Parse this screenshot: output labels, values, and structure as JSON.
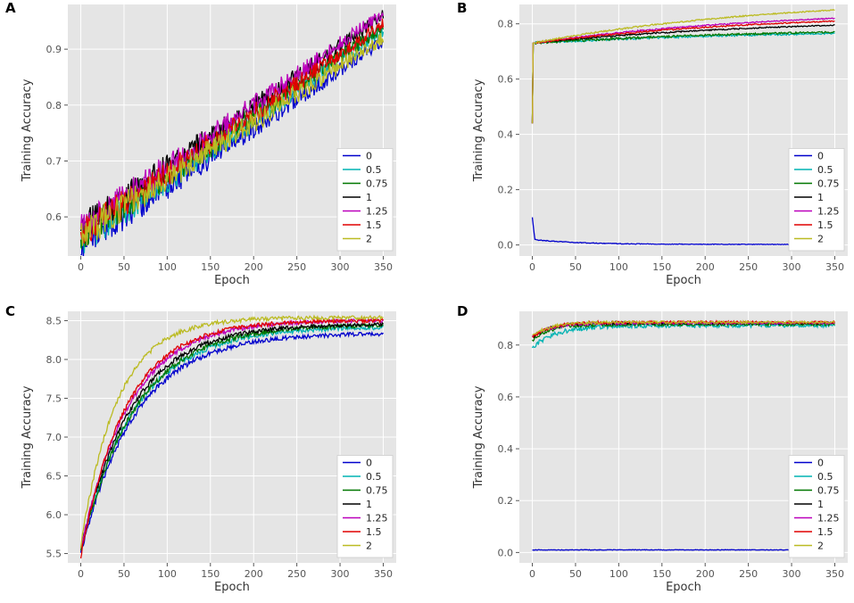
{
  "chart_data": [
    {
      "panel": "A",
      "type": "line",
      "xlabel": "Epoch",
      "ylabel": "Training Accuracy",
      "xlim": [
        -15,
        365
      ],
      "ylim": [
        0.53,
        0.98
      ],
      "xticks": [
        "0",
        "50",
        "100",
        "150",
        "200",
        "250",
        "300",
        "350"
      ],
      "yticks": [
        "0.6",
        "0.7",
        "0.8",
        "0.9"
      ],
      "legend_position": "bottom-right",
      "series": [
        {
          "name": "0",
          "color": "#0000cc",
          "start": 0.55,
          "end": 0.915,
          "shape": 1.0,
          "noise": 0.018,
          "seed": 11
        },
        {
          "name": "0.5",
          "color": "#00b3b3",
          "start": 0.56,
          "end": 0.935,
          "shape": 1.0,
          "noise": 0.02,
          "seed": 12
        },
        {
          "name": "0.75",
          "color": "#007700",
          "start": 0.57,
          "end": 0.94,
          "shape": 1.0,
          "noise": 0.02,
          "seed": 13
        },
        {
          "name": "1",
          "color": "#000000",
          "start": 0.58,
          "end": 0.96,
          "shape": 1.0,
          "noise": 0.018,
          "seed": 14
        },
        {
          "name": "1.25",
          "color": "#bb00bb",
          "start": 0.58,
          "end": 0.965,
          "shape": 1.0,
          "noise": 0.018,
          "seed": 15
        },
        {
          "name": "1.5",
          "color": "#e00000",
          "start": 0.57,
          "end": 0.945,
          "shape": 1.0,
          "noise": 0.018,
          "seed": 16
        },
        {
          "name": "2",
          "color": "#bbbb22",
          "start": 0.57,
          "end": 0.92,
          "shape": 1.0,
          "noise": 0.02,
          "seed": 17
        }
      ]
    },
    {
      "panel": "B",
      "type": "line",
      "xlabel": "Epoch",
      "ylabel": "Training Accuracy",
      "xlim": [
        -15,
        365
      ],
      "ylim": [
        -0.04,
        0.87
      ],
      "xticks": [
        "0",
        "50",
        "100",
        "150",
        "200",
        "250",
        "300",
        "350"
      ],
      "yticks": [
        "0.0",
        "0.2",
        "0.4",
        "0.6",
        "0.8"
      ],
      "legend_position": "bottom-right",
      "series": [
        {
          "name": "0",
          "color": "#0000cc",
          "spike": 0.1,
          "start": 0.02,
          "end": 0.002,
          "shape": 0.15,
          "noise": 0.001,
          "seed": 21
        },
        {
          "name": "0.5",
          "color": "#00b3b3",
          "spike": 0.44,
          "start": 0.73,
          "end": 0.765,
          "shape": 0.8,
          "noise": 0.003,
          "seed": 22
        },
        {
          "name": "0.75",
          "color": "#007700",
          "spike": 0.44,
          "start": 0.73,
          "end": 0.77,
          "shape": 0.8,
          "noise": 0.003,
          "seed": 23
        },
        {
          "name": "1",
          "color": "#000000",
          "spike": 0.44,
          "start": 0.73,
          "end": 0.795,
          "shape": 0.8,
          "noise": 0.002,
          "seed": 24
        },
        {
          "name": "1.25",
          "color": "#bb00bb",
          "spike": 0.44,
          "start": 0.73,
          "end": 0.82,
          "shape": 0.8,
          "noise": 0.002,
          "seed": 25
        },
        {
          "name": "1.5",
          "color": "#e00000",
          "spike": 0.44,
          "start": 0.73,
          "end": 0.81,
          "shape": 0.8,
          "noise": 0.002,
          "seed": 26
        },
        {
          "name": "2",
          "color": "#bbbb22",
          "spike": 0.44,
          "start": 0.73,
          "end": 0.85,
          "shape": 0.8,
          "noise": 0.002,
          "seed": 27
        }
      ]
    },
    {
      "panel": "C",
      "type": "line",
      "xlabel": "Epoch",
      "ylabel": "Training Accuracy",
      "xlim": [
        -15,
        365
      ],
      "ylim": [
        5.38,
        8.62
      ],
      "xticks": [
        "0",
        "50",
        "100",
        "150",
        "200",
        "250",
        "300",
        "350"
      ],
      "yticks": [
        "5.5",
        "6.0",
        "6.5",
        "7.0",
        "7.5",
        "8.0",
        "8.5"
      ],
      "legend_position": "bottom-right",
      "series": [
        {
          "name": "0",
          "color": "#0000cc",
          "start": 5.5,
          "end": 8.33,
          "shape": 0.18,
          "noise": 0.025,
          "seed": 31
        },
        {
          "name": "0.5",
          "color": "#00b3b3",
          "start": 5.55,
          "end": 8.41,
          "shape": 0.18,
          "noise": 0.025,
          "seed": 32
        },
        {
          "name": "0.75",
          "color": "#007700",
          "start": 5.52,
          "end": 8.44,
          "shape": 0.18,
          "noise": 0.025,
          "seed": 33
        },
        {
          "name": "1",
          "color": "#000000",
          "start": 5.55,
          "end": 8.45,
          "shape": 0.17,
          "noise": 0.022,
          "seed": 34
        },
        {
          "name": "1.25",
          "color": "#bb00bb",
          "start": 5.55,
          "end": 8.5,
          "shape": 0.16,
          "noise": 0.022,
          "seed": 35
        },
        {
          "name": "1.5",
          "color": "#e00000",
          "start": 5.47,
          "end": 8.5,
          "shape": 0.15,
          "noise": 0.022,
          "seed": 36
        },
        {
          "name": "2",
          "color": "#bbbb22",
          "start": 5.6,
          "end": 8.54,
          "shape": 0.12,
          "noise": 0.022,
          "seed": 37
        }
      ]
    },
    {
      "panel": "D",
      "type": "line",
      "xlabel": "Epoch",
      "ylabel": "Training Accuracy",
      "xlim": [
        -15,
        365
      ],
      "ylim": [
        -0.04,
        0.93
      ],
      "xticks": [
        "0",
        "50",
        "100",
        "150",
        "200",
        "250",
        "300",
        "350"
      ],
      "yticks": [
        "0.0",
        "0.2",
        "0.4",
        "0.6",
        "0.8"
      ],
      "legend_position": "bottom-right",
      "series": [
        {
          "name": "0",
          "color": "#0000cc",
          "start": 0.01,
          "end": 0.01,
          "shape": 0.1,
          "noise": 0.0008,
          "seed": 41
        },
        {
          "name": "0.5",
          "color": "#00b3b3",
          "start": 0.79,
          "end": 0.875,
          "shape": 0.08,
          "noise": 0.006,
          "seed": 42
        },
        {
          "name": "0.75",
          "color": "#007700",
          "start": 0.82,
          "end": 0.88,
          "shape": 0.06,
          "noise": 0.005,
          "seed": 43
        },
        {
          "name": "1",
          "color": "#000000",
          "start": 0.83,
          "end": 0.885,
          "shape": 0.06,
          "noise": 0.004,
          "seed": 44
        },
        {
          "name": "1.25",
          "color": "#bb00bb",
          "start": 0.83,
          "end": 0.885,
          "shape": 0.06,
          "noise": 0.004,
          "seed": 45
        },
        {
          "name": "1.5",
          "color": "#e00000",
          "start": 0.83,
          "end": 0.888,
          "shape": 0.06,
          "noise": 0.004,
          "seed": 46
        },
        {
          "name": "2",
          "color": "#bbbb22",
          "start": 0.835,
          "end": 0.888,
          "shape": 0.06,
          "noise": 0.004,
          "seed": 47
        }
      ]
    }
  ]
}
